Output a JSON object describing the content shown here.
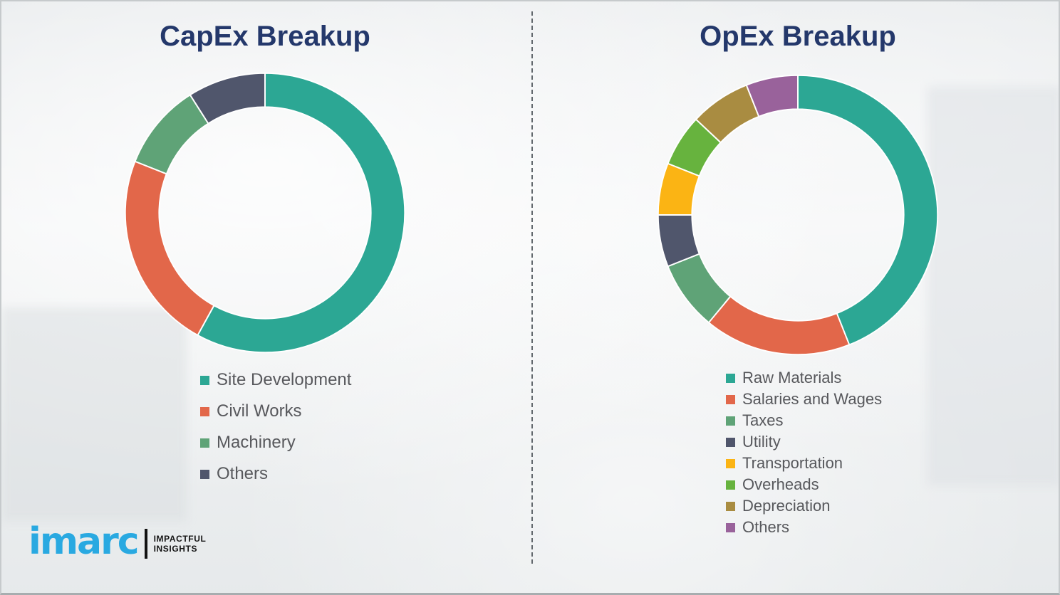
{
  "palette": {
    "title_color": "#24386b",
    "legend_text_color": "#57585c",
    "brand_blue": "#29a9e1",
    "brand_black": "#121212",
    "background": "#edeff0"
  },
  "chart_data": [
    {
      "type": "pie",
      "title": "CapEx Breakup",
      "labels": [
        "Site Development",
        "Civil Works",
        "Machinery",
        "Others"
      ],
      "values": [
        58,
        23,
        10,
        9
      ],
      "colors": [
        "#2ca794",
        "#e2674a",
        "#5fa377",
        "#50566c"
      ],
      "donut": true,
      "start_angle_deg": 0,
      "direction": "clockwise",
      "legend_position": "below",
      "units": "percent (estimated from arc angles, no data labels shown)"
    },
    {
      "type": "pie",
      "title": "OpEx Breakup",
      "labels": [
        "Raw Materials",
        "Salaries and Wages",
        "Taxes",
        "Utility",
        "Transportation",
        "Overheads",
        "Depreciation",
        "Others"
      ],
      "values": [
        44,
        17,
        8,
        6,
        6,
        6,
        7,
        6
      ],
      "colors": [
        "#2ca794",
        "#e2674a",
        "#5fa377",
        "#50566c",
        "#fbb414",
        "#67b33e",
        "#a98c41",
        "#99629b"
      ],
      "donut": true,
      "start_angle_deg": 0,
      "direction": "clockwise",
      "legend_position": "below",
      "units": "percent (estimated from arc angles, no data labels shown)"
    }
  ],
  "logo": {
    "brand": "imarc",
    "tagline_line1": "IMPACTFUL",
    "tagline_line2": "INSIGHTS"
  }
}
